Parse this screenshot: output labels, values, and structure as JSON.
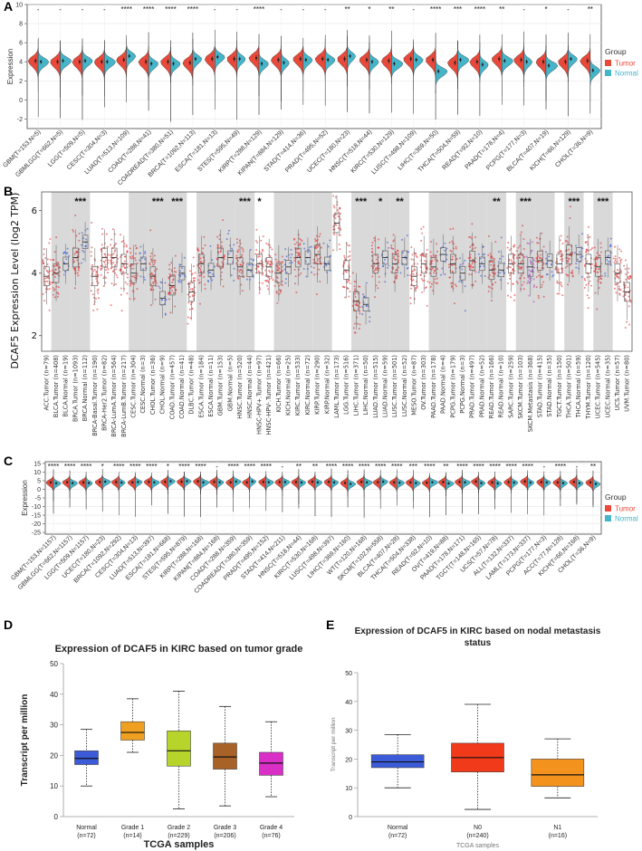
{
  "panels": {
    "a": "A",
    "b": "B",
    "c": "C",
    "d": "D",
    "e": "E"
  },
  "colors": {
    "tumor": "#e8493a",
    "normal": "#45b5c9",
    "boxTumor": "#e02525",
    "boxNormal": "#2c4fd8",
    "metastasis": "#9b3dc9"
  },
  "chart_data": [
    {
      "id": "A",
      "type": "split-violin",
      "ylabel": "Expression",
      "ylim": [
        -3,
        10
      ],
      "yticks": [
        -2,
        0,
        2,
        4,
        6,
        8,
        10
      ],
      "legend": {
        "title": "Group",
        "items": [
          "Tumor",
          "Normal"
        ],
        "position": "right"
      },
      "categories": [
        "GBM(T=153,N=5)",
        "GBMLGG(T=662,N=5)",
        "LGG(T=509,N=5)",
        "CESC(T=304,N=3)",
        "LUAD(T=513,N=109)",
        "COAD(T=288,N=41)",
        "COADREAD(T=380,N=51)",
        "BRCA(T=1092,N=113)",
        "ESCA(T=181,N=13)",
        "STES(T=595,N=49)",
        "KIRP(T=288,N=129)",
        "KIPAN(T=884,N=129)",
        "STAD(T=414,N=36)",
        "PRAD(T=495,N=52)",
        "UCEC(T=180,N=23)",
        "HNSC(T=518,N=44)",
        "KIRC(T=530,N=129)",
        "LUSC(T=498,N=109)",
        "LIHC(T=369,N=50)",
        "THCA(T=504,N=59)",
        "READ(T=92,N=10)",
        "PAAD(T=178,N=4)",
        "PCPG(T=177,N=3)",
        "BLCA(T=407,N=19)",
        "KICH(T=66,N=129)",
        "CHOL(T=36,N=9)"
      ],
      "significance": [
        "-",
        "-",
        "-",
        "-",
        "****",
        "****",
        "****",
        "****",
        "-",
        "-",
        "****",
        "-",
        "-",
        "-",
        "**",
        "*",
        "**",
        "-",
        "****",
        "***",
        "****",
        "**",
        "-",
        "*",
        "-",
        "**"
      ],
      "tumor_median": [
        4.1,
        4.0,
        4.0,
        4.0,
        4.2,
        4.0,
        4.0,
        3.9,
        4.3,
        4.3,
        4.4,
        4.2,
        4.3,
        4.3,
        4.3,
        4.2,
        4.1,
        4.3,
        4.2,
        3.9,
        4.0,
        4.3,
        4.2,
        4.0,
        4.0,
        4.1
      ],
      "normal_median": [
        4.0,
        4.1,
        4.1,
        4.0,
        4.6,
        3.8,
        3.8,
        4.3,
        4.5,
        4.3,
        3.8,
        3.9,
        4.2,
        4.2,
        4.6,
        4.0,
        3.8,
        4.2,
        3.0,
        4.2,
        3.7,
        4.1,
        4.0,
        3.6,
        4.3,
        3.1
      ]
    },
    {
      "id": "B",
      "type": "box-jitter",
      "ylabel": "DCAF5 Expression Level (log2 TPM)",
      "ylim": [
        1.5,
        6.6
      ],
      "yticks": [
        2,
        4,
        6
      ],
      "categories": [
        "ACC.Tumor (n=79)",
        "BLCA.Tumor (n=408)",
        "BLCA.Normal (n=19)",
        "BRCA.Tumor (n=1093)",
        "BRCA.Normal (n=112)",
        "BRCA-Basal.Tumor (n=190)",
        "BRCA-Her2.Tumor (n=82)",
        "BRCA-LumA.Tumor (n=564)",
        "BRCA-LumB.Tumor (n=217)",
        "CESC.Tumor (n=304)",
        "CESC.Normal (n=3)",
        "CHOL.Tumor (n=36)",
        "CHOL.Normal (n=9)",
        "COAD.Tumor (n=457)",
        "COAD.Normal (n=41)",
        "DLBC.Tumor (n=48)",
        "ESCA.Tumor (n=184)",
        "ESCA.Normal (n=11)",
        "GBM.Tumor (n=153)",
        "GBM.Normal (n=5)",
        "HNSC.Tumor (n=520)",
        "HNSC.Normal (n=44)",
        "HNSC-HPV+.Tumor (n=97)",
        "HNSC-HPV-.Tumor (n=421)",
        "KICH.Tumor (n=66)",
        "KICH.Normal (n=25)",
        "KIRC.Tumor (n=533)",
        "KIRC.Normal (n=72)",
        "KIRP.Tumor (n=290)",
        "KIRP.Normal (n=32)",
        "LAML.Tumor (n=173)",
        "LGG.Tumor (n=516)",
        "LIHC.Tumor (n=371)",
        "LIHC.Normal (n=50)",
        "LUAD.Tumor (n=515)",
        "LUAD.Normal (n=59)",
        "LUSC.Tumor (n=501)",
        "LUSC.Normal (n=52)",
        "MESO.Tumor (n=87)",
        "OV.Tumor (n=303)",
        "PAAD.Tumor (n=178)",
        "PAAD.Normal (n=4)",
        "PCPG.Tumor (n=179)",
        "PCPG.Normal (n=3)",
        "PRAD.Tumor (n=497)",
        "PRAD.Normal (n=52)",
        "READ.Tumor (n=166)",
        "READ.Normal (n=10)",
        "SARC.Tumor (n=259)",
        "SKCM.Tumor (n=103)",
        "SKCM.Metastasis (n=368)",
        "STAD.Tumor (n=415)",
        "STAD.Normal (n=35)",
        "TGCT.Tumor (n=150)",
        "THCA.Tumor (n=501)",
        "THCA.Normal (n=59)",
        "THYM.Tumor (n=120)",
        "UCEC.Tumor (n=545)",
        "UCEC.Normal (n=35)",
        "UCS.Tumor (n=57)",
        "UVM.Tumor (n=80)"
      ],
      "group": [
        "T",
        "T",
        "N",
        "T",
        "N",
        "T",
        "T",
        "T",
        "T",
        "T",
        "N",
        "T",
        "N",
        "T",
        "N",
        "T",
        "T",
        "N",
        "T",
        "N",
        "T",
        "N",
        "T",
        "T",
        "T",
        "N",
        "T",
        "N",
        "T",
        "N",
        "T",
        "T",
        "T",
        "N",
        "T",
        "N",
        "T",
        "N",
        "T",
        "T",
        "T",
        "N",
        "T",
        "N",
        "T",
        "N",
        "T",
        "N",
        "T",
        "T",
        "M",
        "T",
        "N",
        "T",
        "T",
        "N",
        "T",
        "T",
        "N",
        "T",
        "T"
      ],
      "median": [
        3.9,
        4.0,
        4.3,
        4.5,
        5.0,
        3.9,
        4.5,
        4.5,
        4.3,
        4.0,
        4.3,
        3.9,
        3.2,
        3.6,
        4.0,
        3.4,
        4.3,
        4.1,
        4.5,
        4.5,
        4.2,
        4.1,
        4.3,
        4.2,
        4.0,
        4.2,
        4.5,
        4.5,
        4.6,
        4.3,
        5.6,
        4.1,
        3.1,
        3.0,
        4.3,
        4.5,
        4.3,
        4.5,
        3.9,
        4.3,
        4.2,
        4.6,
        4.3,
        4.0,
        4.4,
        4.3,
        4.1,
        4.1,
        4.3,
        4.3,
        4.2,
        4.4,
        4.4,
        4.3,
        4.6,
        4.6,
        4.3,
        4.2,
        4.5,
        4.0,
        3.4
      ],
      "shaded_pairs": [
        [
          1,
          2
        ],
        [
          3,
          4
        ],
        [
          9,
          10
        ],
        [
          11,
          12
        ],
        [
          13,
          14
        ],
        [
          16,
          17
        ],
        [
          18,
          19
        ],
        [
          20,
          21
        ],
        [
          24,
          25
        ],
        [
          26,
          27
        ],
        [
          28,
          29
        ],
        [
          32,
          33
        ],
        [
          34,
          35
        ],
        [
          36,
          37
        ],
        [
          40,
          41
        ],
        [
          42,
          43
        ],
        [
          44,
          45
        ],
        [
          46,
          47
        ],
        [
          49,
          50
        ],
        [
          51,
          52
        ],
        [
          54,
          55
        ],
        [
          57,
          58
        ]
      ],
      "significance_marks": [
        {
          "at": 3.5,
          "text": "***"
        },
        {
          "at": 11.5,
          "text": "***"
        },
        {
          "at": 13.5,
          "text": "***"
        },
        {
          "at": 20.5,
          "text": "***"
        },
        {
          "at": 22,
          "text": "*"
        },
        {
          "at": 32.5,
          "text": "***"
        },
        {
          "at": 34.5,
          "text": "*"
        },
        {
          "at": 36.5,
          "text": "**"
        },
        {
          "at": 46.5,
          "text": "**"
        },
        {
          "at": 49.5,
          "text": "***"
        },
        {
          "at": 54.5,
          "text": "***"
        },
        {
          "at": 57.5,
          "text": "***"
        }
      ]
    },
    {
      "id": "C",
      "type": "split-violin",
      "ylabel": "Expression",
      "ylim": [
        -26,
        16
      ],
      "yticks": [
        -25,
        -20,
        -15,
        -10,
        -5,
        0,
        5,
        10,
        15
      ],
      "legend": {
        "title": "Group",
        "items": [
          "Tumor",
          "Normal"
        ],
        "position": "right"
      },
      "categories": [
        "GBM(T=153,N=1157)",
        "GBMLGG(T=662,N=1157)",
        "LGG(T=509,N=1157)",
        "UCEC(T=180,N=23)",
        "BRCA(T=1092,N=292)",
        "CESC(T=304,N=13)",
        "LUAD(T=513,N=397)",
        "ESCA(T=181,N=668)",
        "STES(T=595,N=879)",
        "KIRP(T=288,N=168)",
        "KIPAN(T=884,N=168)",
        "COAD(T=288,N=359)",
        "COADREAD(T=380,N=359)",
        "PRAD(T=495,N=152)",
        "STAD(T=414,N=211)",
        "HNSC(T=518,N=44)",
        "KIRC(T=530,N=168)",
        "LUSC(T=498,N=397)",
        "LIHC(T=369,N=160)",
        "WT(T=120,N=168)",
        "SKCM(T=102,N=558)",
        "BLCA(T=407,N=28)",
        "THCA(T=504,N=338)",
        "READ(T=92,N=10)",
        "OV(T=419,N=88)",
        "PAAD(T=178,N=171)",
        "TGCT(T=148,N=165)",
        "UCS(T=57,N=78)",
        "ALL(T=132,N=337)",
        "LAML(T=173,N=337)",
        "PCPG(T=177,N=3)",
        "ACC(T=77,N=128)",
        "KICH(T=66,N=168)",
        "CHOL(T=36,N=9)"
      ],
      "significance": [
        "****",
        "****",
        "****",
        "*",
        "****",
        "****",
        "****",
        "*",
        "****",
        "****",
        "-",
        "****",
        "****",
        "****",
        "-",
        "**",
        "**",
        "****",
        "****",
        "****",
        "****",
        "****",
        "***",
        "****",
        "**",
        "****",
        "****",
        "****",
        "****",
        "****",
        "-",
        "****",
        "-",
        "**"
      ],
      "tumor_median": [
        4.0,
        4.1,
        4.0,
        4.2,
        4.2,
        4.0,
        4.3,
        4.3,
        4.4,
        4.6,
        4.3,
        4.0,
        4.0,
        4.3,
        4.2,
        4.2,
        4.4,
        4.3,
        3.7,
        4.3,
        4.1,
        4.0,
        4.0,
        3.8,
        4.2,
        4.3,
        4.5,
        4.0,
        4.2,
        4.6,
        4.2,
        4.0,
        4.3,
        4.0
      ],
      "normal_median": [
        3.5,
        3.6,
        3.6,
        4.4,
        3.9,
        4.2,
        4.0,
        4.7,
        4.7,
        4.0,
        4.1,
        4.5,
        4.5,
        4.1,
        4.2,
        3.9,
        4.0,
        4.0,
        3.1,
        4.0,
        4.4,
        3.8,
        3.6,
        4.1,
        3.4,
        4.0,
        3.6,
        3.4,
        3.9,
        3.9,
        4.0,
        3.6,
        3.5,
        3.1
      ]
    },
    {
      "id": "D",
      "type": "box",
      "title": "Expression of DCAF5 in KIRC based on tumor grade",
      "xlabel": "TCGA samples",
      "ylabel": "Transcript per million",
      "ylim": [
        0,
        50
      ],
      "yticks": [
        0,
        10,
        20,
        30,
        40,
        50
      ],
      "categories": [
        "Normal",
        "Grade 1",
        "Grade 2",
        "Grade 3",
        "Grade 4"
      ],
      "n_labels": [
        "(n=72)",
        "(n=14)",
        "(n=229)",
        "(n=206)",
        "(n=76)"
      ],
      "colors": [
        "#3b5bd9",
        "#f0a020",
        "#b7d42a",
        "#a86228",
        "#d92fc7"
      ],
      "stats": [
        {
          "min": 10,
          "q1": 17,
          "median": 19,
          "q3": 21.5,
          "max": 28.5
        },
        {
          "min": 21,
          "q1": 25,
          "median": 27.5,
          "q3": 31,
          "max": 38.5
        },
        {
          "min": 2.5,
          "q1": 16.5,
          "median": 21.5,
          "q3": 28,
          "max": 41
        },
        {
          "min": 3.5,
          "q1": 15.5,
          "median": 19.5,
          "q3": 24,
          "max": 36
        },
        {
          "min": 6.5,
          "q1": 13.5,
          "median": 17.5,
          "q3": 21,
          "max": 31
        }
      ]
    },
    {
      "id": "E",
      "type": "box",
      "title": "Expression of DCAF5 in KIRC based on nodal metastasis status",
      "xlabel": "TCGA samples",
      "ylabel": "Transcript per million",
      "ylim": [
        0,
        50
      ],
      "yticks": [
        0,
        10,
        20,
        30,
        40,
        50
      ],
      "categories": [
        "Normal",
        "N0",
        "N1"
      ],
      "n_labels": [
        "(n=72)",
        "(n=240)",
        "(n=16)"
      ],
      "colors": [
        "#3b5bd9",
        "#f03a1a",
        "#f3921d"
      ],
      "stats": [
        {
          "min": 10,
          "q1": 17,
          "median": 19,
          "q3": 21.5,
          "max": 28.5
        },
        {
          "min": 2.5,
          "q1": 15.5,
          "median": 20.5,
          "q3": 25.5,
          "max": 39
        },
        {
          "min": 6.5,
          "q1": 10.5,
          "median": 14.5,
          "q3": 20,
          "max": 27
        }
      ]
    }
  ]
}
